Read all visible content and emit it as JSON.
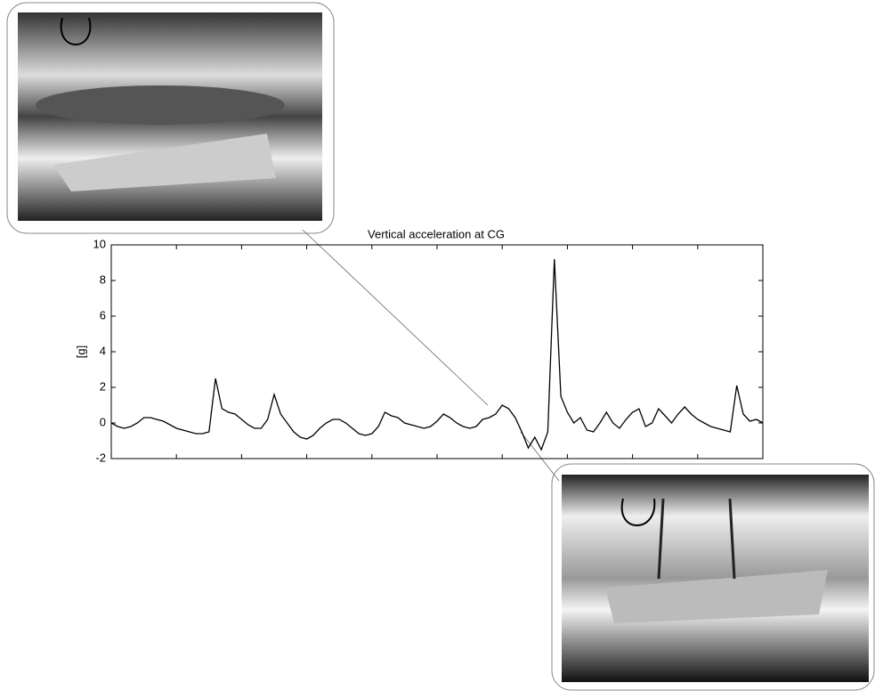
{
  "chart_data": {
    "type": "line",
    "title": "Vertical acceleration at CG",
    "ylabel": "[g]",
    "categories": [
      null,
      null,
      null,
      null,
      null,
      null,
      null,
      null,
      null,
      null,
      null,
      null,
      null,
      null,
      null,
      null,
      null,
      null,
      null,
      null,
      null,
      null,
      null,
      null,
      null,
      null,
      null,
      null,
      null,
      null,
      null,
      null,
      null,
      null,
      null,
      null,
      null,
      null,
      null,
      null,
      null,
      null,
      null,
      null,
      null,
      null,
      null,
      null,
      null,
      null,
      null,
      null,
      null,
      null,
      null,
      null,
      null,
      null,
      null,
      null,
      null,
      null,
      null,
      null,
      null,
      null,
      null,
      null,
      null,
      null,
      null,
      null,
      null,
      null,
      null,
      null,
      null,
      null,
      null,
      null,
      null,
      null,
      null,
      null,
      null,
      null,
      null,
      null,
      null,
      null,
      null,
      null,
      null,
      null,
      null,
      null,
      null,
      null,
      null,
      null,
      null
    ],
    "series": [
      {
        "color": "#000000",
        "values": [
          0.0,
          -0.2,
          -0.3,
          -0.2,
          0.0,
          0.3,
          0.3,
          0.2,
          0.1,
          -0.1,
          -0.3,
          -0.4,
          -0.5,
          -0.6,
          -0.6,
          -0.5,
          2.5,
          0.8,
          0.6,
          0.5,
          0.2,
          -0.1,
          -0.3,
          -0.3,
          0.2,
          1.6,
          0.5,
          0.0,
          -0.5,
          -0.8,
          -0.9,
          -0.7,
          -0.3,
          0.0,
          0.2,
          0.2,
          0.0,
          -0.3,
          -0.6,
          -0.7,
          -0.6,
          -0.2,
          0.6,
          0.4,
          0.3,
          0.0,
          -0.1,
          -0.2,
          -0.3,
          -0.2,
          0.1,
          0.5,
          0.3,
          0.0,
          -0.2,
          -0.3,
          -0.2,
          0.2,
          0.3,
          0.5,
          1.0,
          0.8,
          0.3,
          -0.5,
          -1.4,
          -0.8,
          -1.5,
          -0.5,
          9.2,
          1.5,
          0.6,
          0.0,
          0.3,
          -0.4,
          -0.5,
          0.0,
          0.6,
          0.0,
          -0.3,
          0.2,
          0.6,
          0.8,
          -0.2,
          0.0,
          0.8,
          0.4,
          0.0,
          0.5,
          0.9,
          0.5,
          0.2,
          0.0,
          -0.2,
          -0.3,
          -0.4,
          -0.5,
          2.1,
          0.5,
          0.1,
          0.2,
          0.0
        ]
      }
    ],
    "ylim": [
      -2,
      10
    ],
    "yticks": [
      -2,
      0,
      2,
      4,
      6,
      8,
      10
    ],
    "grid": false
  }
}
